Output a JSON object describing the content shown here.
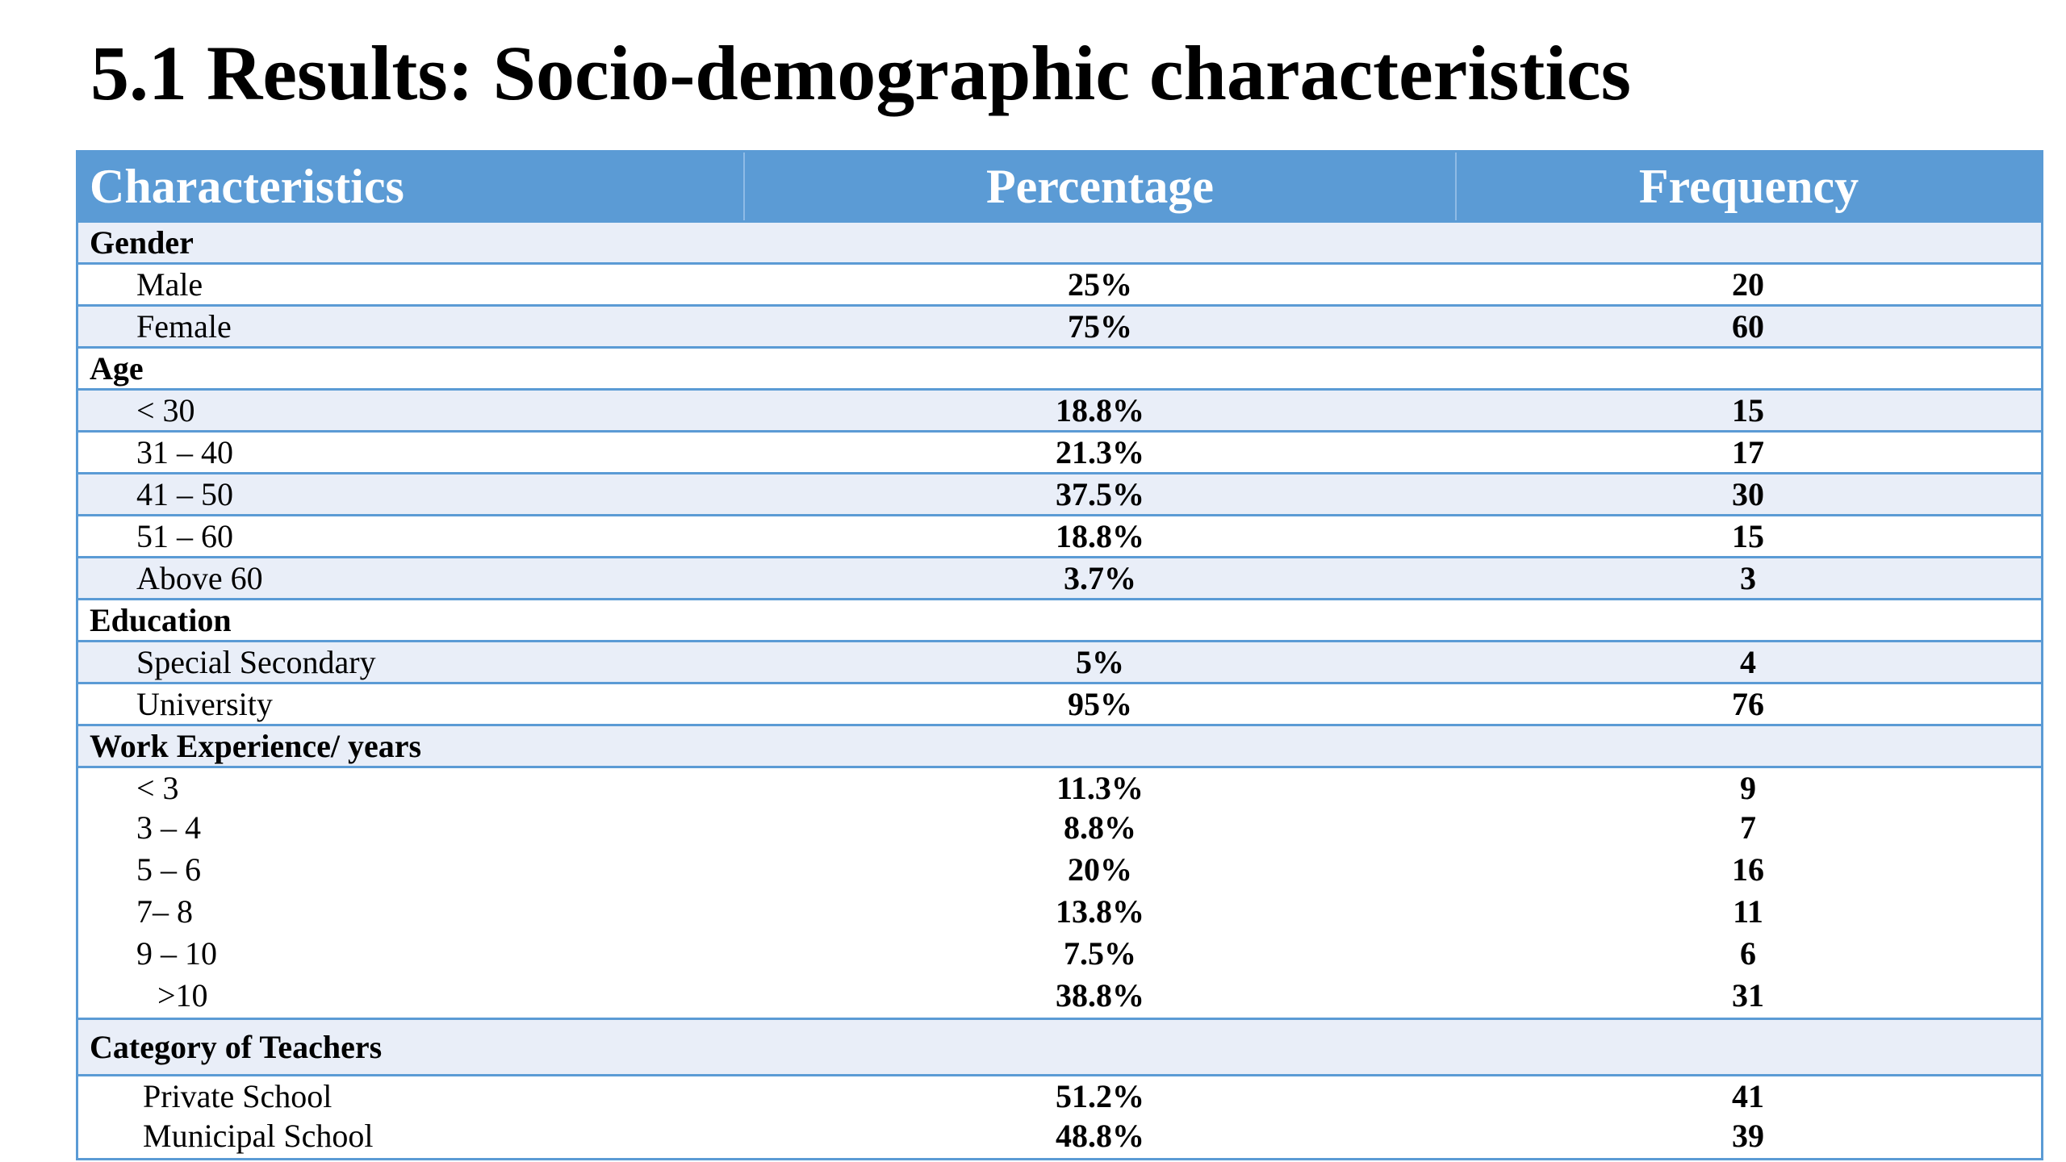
{
  "title": "5.1 Results: Socio-demographic characteristics",
  "table": {
    "headers": {
      "characteristics": "Characteristics",
      "percentage": "Percentage",
      "frequency": "Frequency"
    },
    "sections": {
      "gender": "Gender",
      "age": "Age",
      "education": "Education",
      "work_experience": "Work Experience/ years",
      "category": "Category of Teachers"
    },
    "rows": {
      "male": {
        "label": "Male",
        "percentage": "25%",
        "frequency": "20"
      },
      "female": {
        "label": "Female",
        "percentage": "75%",
        "frequency": "60"
      },
      "age_lt30": {
        "label": "< 30",
        "percentage": "18.8%",
        "frequency": "15"
      },
      "age_31_40": {
        "label": "31 – 40",
        "percentage": "21.3%",
        "frequency": "17"
      },
      "age_41_50": {
        "label": "41 – 50",
        "percentage": "37.5%",
        "frequency": "30"
      },
      "age_51_60": {
        "label": "51 – 60",
        "percentage": "18.8%",
        "frequency": "15"
      },
      "age_above60": {
        "label": "Above 60",
        "percentage": "3.7%",
        "frequency": "3"
      },
      "special_secondary": {
        "label": "Special Secondary",
        "percentage": "5%",
        "frequency": "4"
      },
      "university": {
        "label": "University",
        "percentage": "95%",
        "frequency": "76"
      },
      "we_lt3": {
        "label": "< 3",
        "percentage": "11.3%",
        "frequency": "9"
      },
      "we_3_4": {
        "label": "3 – 4",
        "percentage": "8.8%",
        "frequency": "7"
      },
      "we_5_6": {
        "label": "5 – 6",
        "percentage": "20%",
        "frequency": "16"
      },
      "we_7_8": {
        "label": "7– 8",
        "percentage": "13.8%",
        "frequency": "11"
      },
      "we_9_10": {
        "label": "9 – 10",
        "percentage": "7.5%",
        "frequency": "6"
      },
      "we_gt10": {
        "label": ">10",
        "percentage": "38.8%",
        "frequency": "31"
      },
      "private_school": {
        "label": "Private School",
        "percentage": "51.2%",
        "frequency": "41"
      },
      "municipal_school": {
        "label": "Municipal School",
        "percentage": "48.8%",
        "frequency": "39"
      }
    }
  },
  "colors": {
    "header_bg": "#5b9bd5",
    "header_text": "#ffffff",
    "row_shade": "#e9eef8",
    "border": "#5b9bd5"
  }
}
